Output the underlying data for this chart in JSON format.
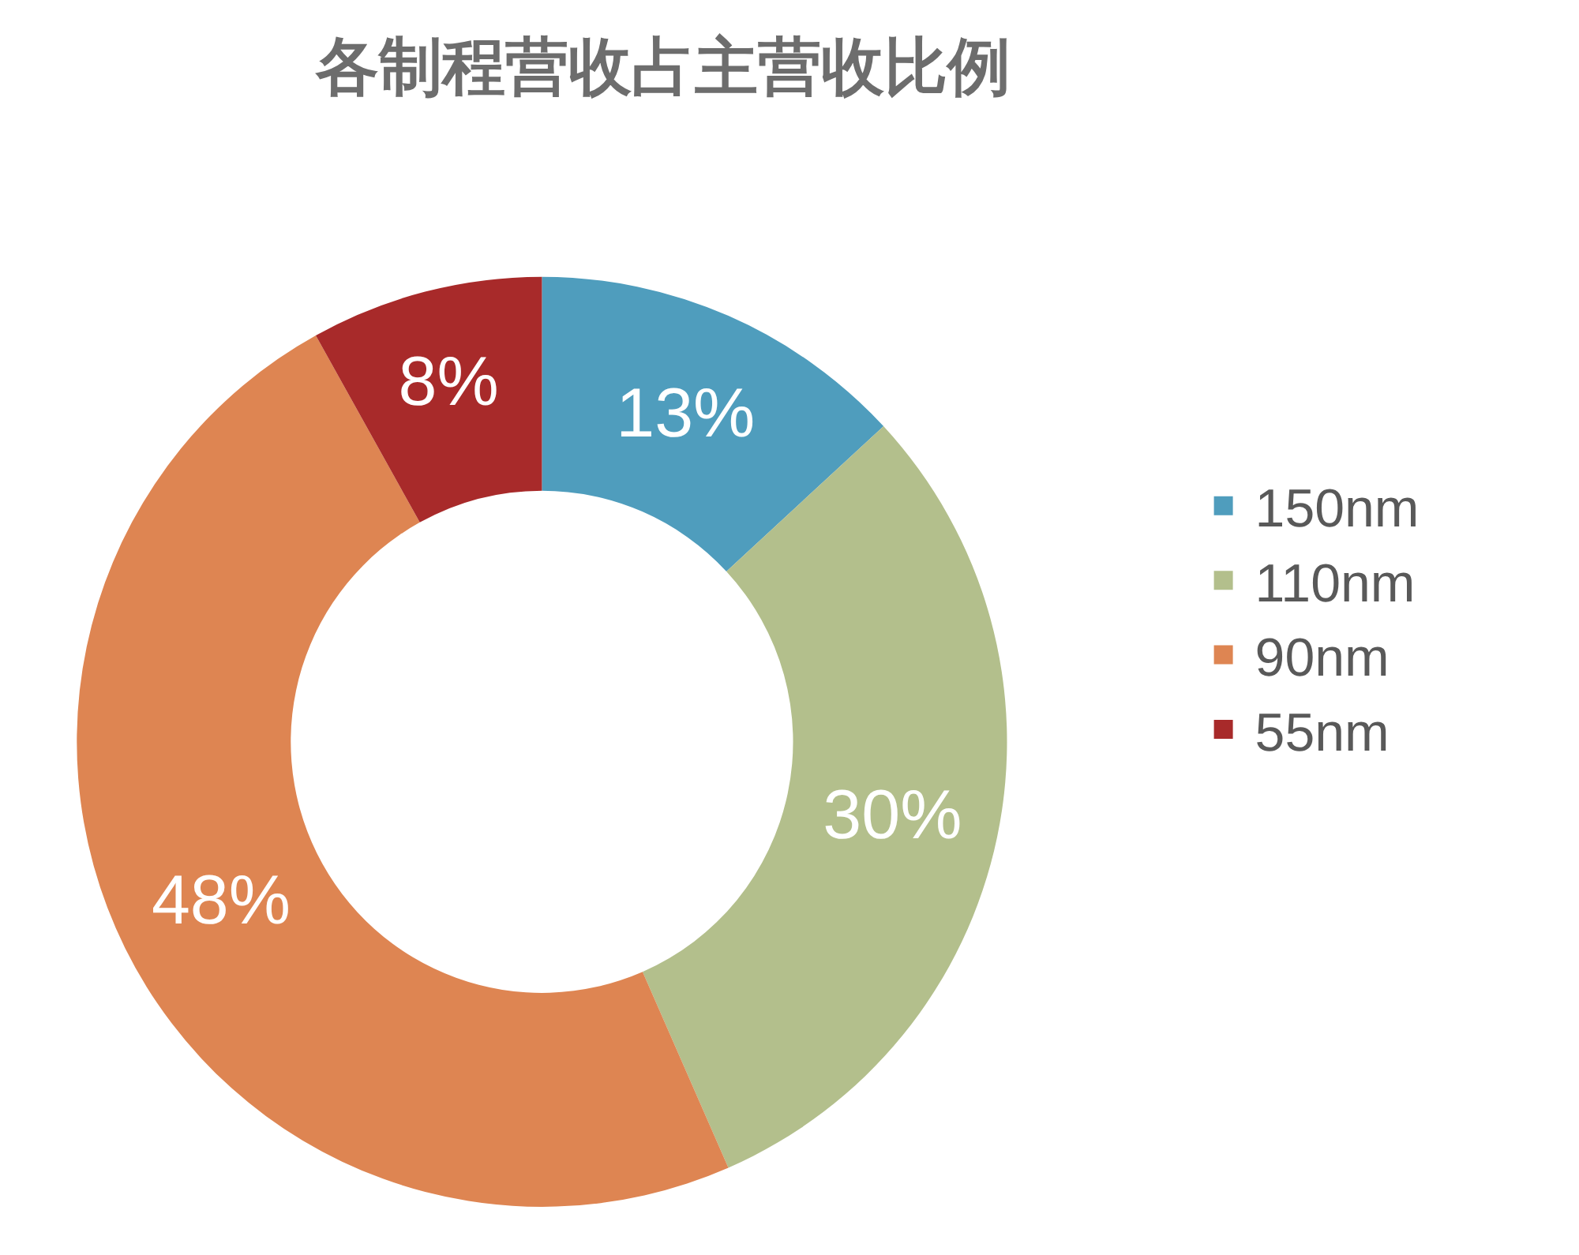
{
  "chart_data": {
    "type": "donut",
    "title": "各制程营收占主营收比例",
    "categories": [
      "150nm",
      "110nm",
      "90nm",
      "55nm"
    ],
    "values": [
      13,
      30,
      48,
      8
    ],
    "colors": [
      "#4f9dbd",
      "#b3bf8c",
      "#de8552",
      "#a82a2a"
    ],
    "value_labels": [
      "13%",
      "30%",
      "48%",
      "8%"
    ],
    "legend": "right"
  }
}
